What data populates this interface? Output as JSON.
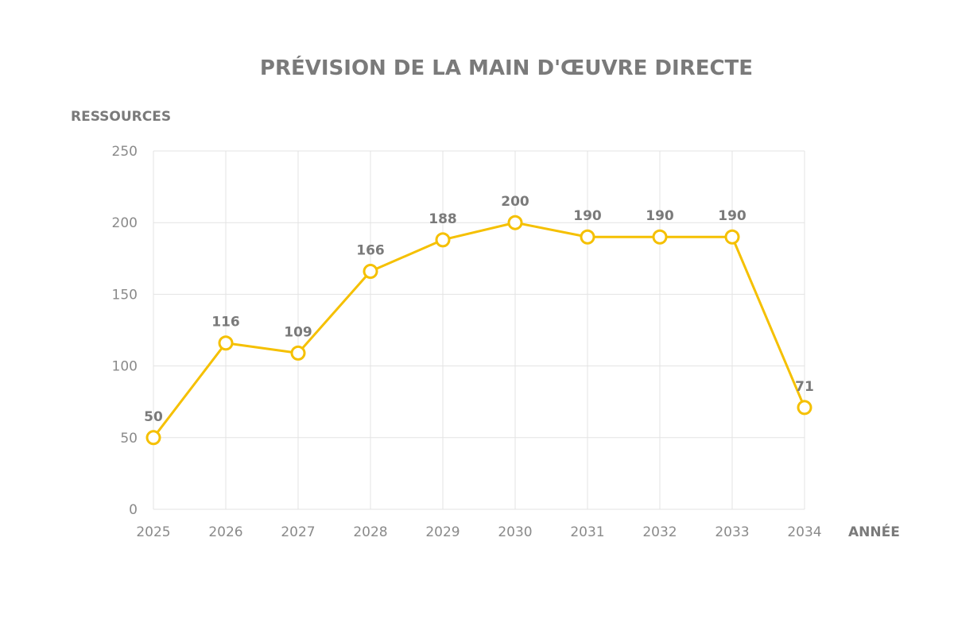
{
  "chart_data": {
    "type": "line",
    "title": "PRÉVISION DE LA MAIN D'ŒUVRE DIRECTE",
    "xlabel": "ANNÉE",
    "ylabel": "RESSOURCES",
    "categories": [
      "2025",
      "2026",
      "2027",
      "2028",
      "2029",
      "2030",
      "2031",
      "2032",
      "2033",
      "2034"
    ],
    "series": [
      {
        "values": [
          50,
          116,
          109,
          166,
          188,
          200,
          190,
          190,
          190,
          71
        ]
      }
    ],
    "data_labels": [
      "50",
      "116",
      "109",
      "166",
      "188",
      "200",
      "190",
      "190",
      "190",
      "71"
    ],
    "ylim": [
      0,
      250
    ],
    "yticks": [
      0,
      50,
      100,
      150,
      200,
      250
    ],
    "ytick_labels": [
      "0",
      "50",
      "100",
      "150",
      "200",
      "250"
    ],
    "grid": true,
    "legend": "none",
    "colors": {
      "line": "#f5c000",
      "marker_fill": "#ffffff",
      "grid": "#e3e3e3",
      "text": "#7a7a7a"
    }
  }
}
